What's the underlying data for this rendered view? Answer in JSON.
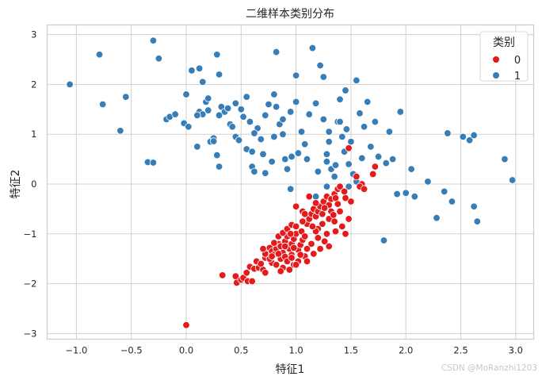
{
  "chart_data": {
    "type": "scatter",
    "title": "二维样本类别分布",
    "xlabel": "特征1",
    "ylabel": "特征2",
    "xlim": [
      -1.25,
      3.15
    ],
    "ylim": [
      -3.2,
      3.2
    ],
    "xticks": [
      "-1.0",
      "-0.5",
      "0.0",
      "0.5",
      "1.0",
      "1.5",
      "2.0",
      "2.5",
      "3.0"
    ],
    "xtick_values": [
      -1.0,
      -0.5,
      0.0,
      0.5,
      1.0,
      1.5,
      2.0,
      2.5,
      3.0
    ],
    "yticks": [
      "3",
      "2",
      "1",
      "0",
      "-1",
      "-2",
      "-3"
    ],
    "ytick_values": [
      3,
      2,
      1,
      0,
      -1,
      -2,
      -3
    ],
    "grid": true,
    "legend": {
      "title": "类别",
      "position": "upper right",
      "entries": [
        {
          "label": "0",
          "color": "#e41a1c"
        },
        {
          "label": "1",
          "color": "#377eb8"
        }
      ]
    },
    "series": [
      {
        "name": "0",
        "color": "#e41a1c",
        "points": [
          [
            0.0,
            -2.83
          ],
          [
            0.33,
            -1.83
          ],
          [
            0.45,
            -1.85
          ],
          [
            0.46,
            -1.98
          ],
          [
            0.5,
            -1.92
          ],
          [
            0.52,
            -1.88
          ],
          [
            0.56,
            -1.95
          ],
          [
            0.6,
            -1.95
          ],
          [
            0.58,
            -1.66
          ],
          [
            0.62,
            -1.7
          ],
          [
            0.55,
            -1.78
          ],
          [
            0.66,
            -1.68
          ],
          [
            0.7,
            -1.72
          ],
          [
            0.72,
            -1.78
          ],
          [
            0.64,
            -1.55
          ],
          [
            0.68,
            -1.6
          ],
          [
            0.72,
            -1.48
          ],
          [
            0.74,
            -1.38
          ],
          [
            0.76,
            -1.28
          ],
          [
            0.78,
            -1.35
          ],
          [
            0.8,
            -1.42
          ],
          [
            0.82,
            -1.3
          ],
          [
            0.84,
            -1.2
          ],
          [
            0.86,
            -1.25
          ],
          [
            0.88,
            -1.38
          ],
          [
            0.9,
            -1.15
          ],
          [
            0.92,
            -1.05
          ],
          [
            0.94,
            -1.3
          ],
          [
            0.96,
            -1.2
          ],
          [
            0.98,
            -1.1
          ],
          [
            1.0,
            -1.0
          ],
          [
            0.78,
            -1.58
          ],
          [
            0.82,
            -1.62
          ],
          [
            0.86,
            -1.5
          ],
          [
            0.9,
            -1.46
          ],
          [
            0.96,
            -1.42
          ],
          [
            1.02,
            -1.32
          ],
          [
            1.04,
            -1.22
          ],
          [
            1.06,
            -1.12
          ],
          [
            0.8,
            -1.18
          ],
          [
            0.84,
            -1.05
          ],
          [
            0.88,
            -0.98
          ],
          [
            0.92,
            -0.9
          ],
          [
            0.96,
            -0.82
          ],
          [
            1.0,
            -0.85
          ],
          [
            1.05,
            -0.95
          ],
          [
            1.08,
            -1.05
          ],
          [
            1.1,
            -0.8
          ],
          [
            1.12,
            -0.7
          ],
          [
            1.14,
            -0.6
          ],
          [
            1.16,
            -0.5
          ],
          [
            1.18,
            -0.65
          ],
          [
            1.2,
            -0.55
          ],
          [
            1.22,
            -0.45
          ],
          [
            1.25,
            -0.35
          ],
          [
            1.28,
            -0.25
          ],
          [
            1.3,
            -0.42
          ],
          [
            1.32,
            -0.3
          ],
          [
            1.35,
            -0.2
          ],
          [
            1.38,
            -0.1
          ],
          [
            1.4,
            -0.05
          ],
          [
            1.12,
            -0.25
          ],
          [
            1.0,
            -0.45
          ],
          [
            1.06,
            -0.55
          ],
          [
            1.2,
            -0.9
          ],
          [
            1.24,
            -0.8
          ],
          [
            1.3,
            -0.7
          ],
          [
            1.35,
            -0.75
          ],
          [
            1.28,
            -1.0
          ],
          [
            1.26,
            -1.15
          ],
          [
            1.18,
            -0.95
          ],
          [
            1.14,
            -1.2
          ],
          [
            1.1,
            -1.3
          ],
          [
            1.08,
            -1.45
          ],
          [
            1.02,
            -1.55
          ],
          [
            0.98,
            -1.62
          ],
          [
            0.94,
            -1.72
          ],
          [
            0.88,
            -1.68
          ],
          [
            0.86,
            -1.75
          ],
          [
            0.92,
            -1.55
          ],
          [
            0.76,
            -1.5
          ],
          [
            0.72,
            -1.4
          ],
          [
            0.7,
            -1.3
          ],
          [
            1.48,
            -0.7
          ],
          [
            1.5,
            -0.35
          ],
          [
            1.45,
            -0.28
          ],
          [
            1.55,
            0.15
          ],
          [
            1.6,
            0.0
          ],
          [
            1.58,
            -0.05
          ],
          [
            1.62,
            -0.1
          ],
          [
            1.7,
            0.2
          ],
          [
            1.72,
            0.35
          ],
          [
            1.48,
            0.72
          ],
          [
            1.4,
            -0.55
          ],
          [
            1.42,
            -0.85
          ],
          [
            1.36,
            -0.95
          ],
          [
            1.45,
            -1.0
          ],
          [
            1.3,
            -1.25
          ],
          [
            1.22,
            -1.3
          ],
          [
            1.16,
            -1.4
          ],
          [
            1.0,
            -1.62
          ],
          [
            1.1,
            -1.55
          ],
          [
            0.84,
            -1.4
          ],
          [
            0.78,
            -1.45
          ],
          [
            0.96,
            -1.48
          ],
          [
            1.04,
            -1.42
          ],
          [
            1.2,
            -1.08
          ],
          [
            1.24,
            -0.6
          ],
          [
            1.08,
            -0.6
          ],
          [
            0.95,
            -1.0
          ],
          [
            1.15,
            -0.85
          ],
          [
            1.32,
            -0.55
          ],
          [
            1.34,
            -0.62
          ],
          [
            1.26,
            -0.48
          ],
          [
            1.38,
            -0.4
          ],
          [
            1.44,
            -0.15
          ],
          [
            1.36,
            -0.28
          ],
          [
            1.18,
            -0.38
          ],
          [
            1.06,
            -0.75
          ],
          [
            0.98,
            -1.28
          ],
          [
            0.9,
            -1.25
          ]
        ]
      },
      {
        "name": "1",
        "color": "#377eb8",
        "points": [
          [
            -1.06,
            2.0
          ],
          [
            -0.79,
            2.6
          ],
          [
            -0.76,
            1.6
          ],
          [
            -0.6,
            1.07
          ],
          [
            -0.55,
            1.75
          ],
          [
            -0.35,
            0.44
          ],
          [
            -0.3,
            0.43
          ],
          [
            -0.3,
            2.88
          ],
          [
            -0.25,
            2.52
          ],
          [
            -0.18,
            1.3
          ],
          [
            -0.15,
            1.35
          ],
          [
            -0.1,
            1.4
          ],
          [
            -0.02,
            1.22
          ],
          [
            0.0,
            1.8
          ],
          [
            0.02,
            1.15
          ],
          [
            0.05,
            2.28
          ],
          [
            0.1,
            0.75
          ],
          [
            0.12,
            2.32
          ],
          [
            0.12,
            1.45
          ],
          [
            0.15,
            2.05
          ],
          [
            0.18,
            1.65
          ],
          [
            0.2,
            1.72
          ],
          [
            0.22,
            0.85
          ],
          [
            0.25,
            0.92
          ],
          [
            0.28,
            0.58
          ],
          [
            0.28,
            2.6
          ],
          [
            0.3,
            2.2
          ],
          [
            0.3,
            0.35
          ],
          [
            0.32,
            1.55
          ],
          [
            0.35,
            1.45
          ],
          [
            0.4,
            1.2
          ],
          [
            0.45,
            1.62
          ],
          [
            0.45,
            0.95
          ],
          [
            0.48,
            0.88
          ],
          [
            0.52,
            1.35
          ],
          [
            0.55,
            1.75
          ],
          [
            0.55,
            0.7
          ],
          [
            0.58,
            1.25
          ],
          [
            0.6,
            0.35
          ],
          [
            0.62,
            0.25
          ],
          [
            0.65,
            1.12
          ],
          [
            0.68,
            0.9
          ],
          [
            0.72,
            0.22
          ],
          [
            0.75,
            1.6
          ],
          [
            0.8,
            1.8
          ],
          [
            0.82,
            1.55
          ],
          [
            0.8,
            0.95
          ],
          [
            0.82,
            2.65
          ],
          [
            0.85,
            1.2
          ],
          [
            0.88,
            1.0
          ],
          [
            0.9,
            0.5
          ],
          [
            0.92,
            0.3
          ],
          [
            0.95,
            1.45
          ],
          [
            1.0,
            1.65
          ],
          [
            1.0,
            2.18
          ],
          [
            1.05,
            1.05
          ],
          [
            1.08,
            0.8
          ],
          [
            1.1,
            0.5
          ],
          [
            1.12,
            1.4
          ],
          [
            1.15,
            2.73
          ],
          [
            1.18,
            1.62
          ],
          [
            1.2,
            0.25
          ],
          [
            1.22,
            2.38
          ],
          [
            1.25,
            2.15
          ],
          [
            1.25,
            1.3
          ],
          [
            1.28,
            0.6
          ],
          [
            1.3,
            1.05
          ],
          [
            1.32,
            0.3
          ],
          [
            1.35,
            0.15
          ],
          [
            1.38,
            1.25
          ],
          [
            1.4,
            1.7
          ],
          [
            1.42,
            0.95
          ],
          [
            1.45,
            1.88
          ],
          [
            1.48,
            0.4
          ],
          [
            1.5,
            0.85
          ],
          [
            1.52,
            0.2
          ],
          [
            1.55,
            2.08
          ],
          [
            1.58,
            1.42
          ],
          [
            1.6,
            0.52
          ],
          [
            1.62,
            1.15
          ],
          [
            1.65,
            1.65
          ],
          [
            1.68,
            0.75
          ],
          [
            1.72,
            1.25
          ],
          [
            1.75,
            0.55
          ],
          [
            1.8,
            -1.13
          ],
          [
            1.82,
            0.42
          ],
          [
            1.85,
            1.05
          ],
          [
            1.88,
            0.5
          ],
          [
            1.92,
            -0.2
          ],
          [
            1.95,
            1.45
          ],
          [
            2.0,
            -0.18
          ],
          [
            2.05,
            0.3
          ],
          [
            2.08,
            -0.25
          ],
          [
            2.2,
            0.05
          ],
          [
            2.28,
            -0.68
          ],
          [
            2.35,
            -0.15
          ],
          [
            2.38,
            1.02
          ],
          [
            2.42,
            -0.35
          ],
          [
            2.52,
            0.95
          ],
          [
            2.58,
            0.88
          ],
          [
            2.62,
            -0.45
          ],
          [
            2.62,
            0.98
          ],
          [
            2.65,
            -0.75
          ],
          [
            2.9,
            0.5
          ],
          [
            2.97,
            0.08
          ],
          [
            1.28,
            0.45
          ],
          [
            1.36,
            0.38
          ],
          [
            1.44,
            0.65
          ],
          [
            1.46,
            1.1
          ],
          [
            1.4,
            1.25
          ],
          [
            0.7,
            0.6
          ],
          [
            0.78,
            0.45
          ],
          [
            0.88,
            1.3
          ],
          [
            0.96,
            0.55
          ],
          [
            1.02,
            0.62
          ],
          [
            0.6,
            0.65
          ],
          [
            0.42,
            1.15
          ],
          [
            0.3,
            1.38
          ],
          [
            0.25,
            0.86
          ],
          [
            0.38,
            1.52
          ],
          [
            0.5,
            1.5
          ],
          [
            0.2,
            1.48
          ],
          [
            0.15,
            1.4
          ],
          [
            0.1,
            1.38
          ],
          [
            0.95,
            -0.1
          ],
          [
            1.18,
            -0.25
          ],
          [
            1.28,
            -0.05
          ],
          [
            1.48,
            -0.05
          ],
          [
            1.55,
            0.05
          ],
          [
            0.62,
            1.02
          ],
          [
            0.72,
            1.38
          ],
          [
            1.3,
            0.85
          ]
        ]
      }
    ]
  },
  "watermark": "CSDN @MoRanzhi1203"
}
